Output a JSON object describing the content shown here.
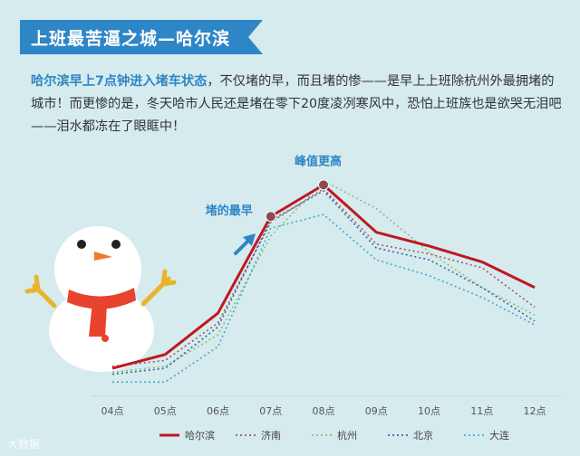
{
  "header": {
    "title": "上班最苦逼之城—哈尔滨"
  },
  "intro": {
    "highlight": "哈尔滨早上7点钟进入堵车状态",
    "body": "，不仅堵的早，而且堵的惨——是早上上班除杭州外最拥堵的城市！而更惨的是，冬天哈市人民还是堵在零下20度凌冽寒风中，恐怕上班族也是欲哭无泪吧——泪水都冻在了眼眶中！"
  },
  "brand": "大数据",
  "colors": {
    "background": "#d6ebee",
    "banner": "#2f86c6",
    "accent_text": "#2f86c6",
    "harbin": "#c0181f",
    "jinan": "#a8565a",
    "hangzhou": "#8cc070",
    "beijing": "#3a63a5",
    "dalian": "#47a8c8"
  },
  "chart_data": {
    "type": "line",
    "categories": [
      "04点",
      "05点",
      "06点",
      "07点",
      "08点",
      "09点",
      "10点",
      "11点",
      "12点"
    ],
    "ylim": [
      0,
      100
    ],
    "grid": false,
    "legend_position": "bottom",
    "series": [
      {
        "name": "哈尔滨",
        "values": [
          5,
          12,
          33,
          82,
          98,
          74,
          67,
          59,
          46
        ],
        "style": "solid",
        "color": "#c0181f"
      },
      {
        "name": "济南",
        "values": [
          6,
          9,
          28,
          79,
          96,
          68,
          63,
          56,
          36
        ],
        "style": "dotted",
        "color": "#a8565a"
      },
      {
        "name": "杭州",
        "values": [
          3,
          6,
          22,
          72,
          100,
          86,
          64,
          46,
          32
        ],
        "style": "dotted",
        "color": "#8cc070"
      },
      {
        "name": "北京",
        "values": [
          2,
          5,
          26,
          80,
          95,
          66,
          60,
          46,
          29
        ],
        "style": "dotted",
        "color": "#3a63a5"
      },
      {
        "name": "大连",
        "values": [
          -2,
          -2,
          16,
          76,
          83,
          60,
          52,
          41,
          27
        ],
        "style": "dotted",
        "color": "#47a8c8"
      }
    ],
    "annotations": [
      {
        "label": "堵的最早",
        "category": "07点",
        "series": "哈尔滨"
      },
      {
        "label": "峰值更高",
        "category": "08点",
        "series": "哈尔滨"
      }
    ]
  }
}
